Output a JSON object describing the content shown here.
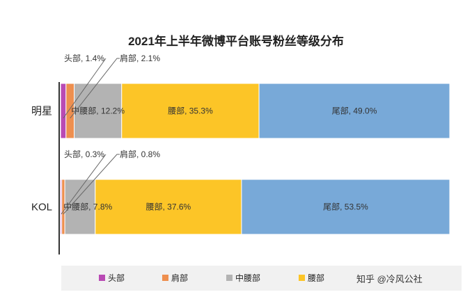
{
  "chart_data": {
    "type": "bar",
    "orientation": "horizontal-stacked-100",
    "title": "2021年上半年微博平台账号粉丝等级分布",
    "categories": [
      "明星",
      "KOL"
    ],
    "series": [
      {
        "name": "头部",
        "values": [
          1.4,
          0.3
        ],
        "color": "#b94ab4"
      },
      {
        "name": "肩部",
        "values": [
          2.1,
          0.8
        ],
        "color": "#ee8f4f"
      },
      {
        "name": "中腰部",
        "values": [
          12.2,
          7.8
        ],
        "color": "#b3b3b3"
      },
      {
        "name": "腰部",
        "values": [
          35.3,
          37.6
        ],
        "color": "#fcc527"
      },
      {
        "name": "尾部",
        "values": [
          49.0,
          53.5
        ],
        "color": "#78a9d8"
      }
    ],
    "data_labels": [
      [
        "头部, 1.4%",
        "肩部, 2.1%",
        "中腰部, 12.2%",
        "腰部, 35.3%",
        "尾部, 49.0%"
      ],
      [
        "头部, 0.3%",
        "肩部, 0.8%",
        "中腰部, 7.8%",
        "腰部, 37.6%",
        "尾部, 53.5%"
      ]
    ],
    "legend_position": "bottom",
    "xlim": [
      0,
      100
    ],
    "grid": false
  },
  "watermark": "知乎 @冷风公社"
}
